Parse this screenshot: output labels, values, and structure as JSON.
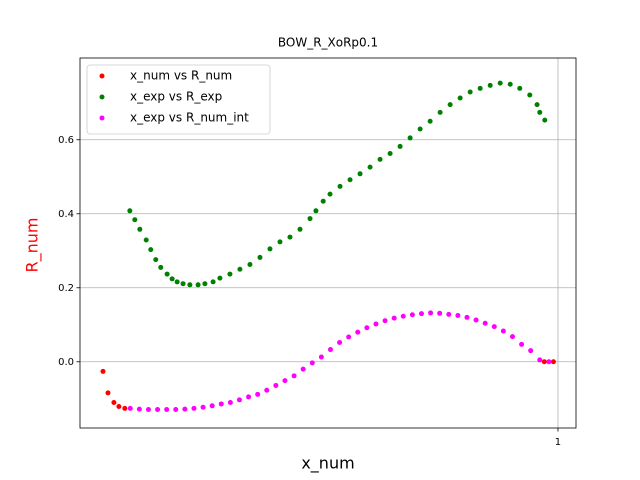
{
  "chart_data": {
    "type": "scatter",
    "title": "BOW_R_XoRp0.1",
    "x_label": "x_num",
    "y_label": "R_num",
    "y_label_color": "#ff0000",
    "xlim": [
      -0.0505,
      1.0396
    ],
    "ylim": [
      -0.179,
      0.821
    ],
    "xticks": [
      1
    ],
    "yticks": [
      {
        "value": 0,
        "label": "0.0"
      },
      0.2,
      0.4,
      0.6
    ],
    "grid": true,
    "legend": "upper left",
    "series": [
      {
        "name": "x_num vs R_num",
        "color": "#ff0000",
        "x": [
          0,
          0.011,
          0.024,
          0.035,
          0.048,
          0.97,
          0.99
        ],
        "values": [
          -0.026,
          -0.084,
          -0.11,
          -0.121,
          -0.126,
          0,
          0
        ]
      },
      {
        "name": "x_exp vs R_exp",
        "color": "#008000",
        "x": [
          0.059,
          0.07,
          0.081,
          0.095,
          0.105,
          0.116,
          0.127,
          0.141,
          0.152,
          0.163,
          0.176,
          0.191,
          0.209,
          0.224,
          0.242,
          0.257,
          0.279,
          0.301,
          0.323,
          0.345,
          0.367,
          0.389,
          0.411,
          0.433,
          0.455,
          0.468,
          0.484,
          0.499,
          0.521,
          0.543,
          0.565,
          0.587,
          0.609,
          0.631,
          0.653,
          0.675,
          0.697,
          0.719,
          0.741,
          0.763,
          0.785,
          0.807,
          0.829,
          0.851,
          0.873,
          0.895,
          0.916,
          0.938,
          0.954,
          0.96,
          0.971
        ],
        "values": [
          0.408,
          0.384,
          0.358,
          0.329,
          0.303,
          0.276,
          0.255,
          0.237,
          0.224,
          0.216,
          0.211,
          0.208,
          0.208,
          0.211,
          0.216,
          0.226,
          0.237,
          0.25,
          0.263,
          0.282,
          0.305,
          0.324,
          0.337,
          0.358,
          0.387,
          0.408,
          0.434,
          0.453,
          0.474,
          0.492,
          0.508,
          0.526,
          0.547,
          0.563,
          0.582,
          0.605,
          0.629,
          0.65,
          0.674,
          0.695,
          0.713,
          0.729,
          0.739,
          0.747,
          0.753,
          0.75,
          0.739,
          0.721,
          0.695,
          0.674,
          0.653
        ]
      },
      {
        "name": "x_exp vs R_num_int",
        "color": "#ff00ff",
        "x": [
          0.06,
          0.08,
          0.1,
          0.12,
          0.14,
          0.16,
          0.18,
          0.2,
          0.22,
          0.24,
          0.26,
          0.28,
          0.3,
          0.32,
          0.34,
          0.36,
          0.38,
          0.4,
          0.42,
          0.44,
          0.46,
          0.48,
          0.5,
          0.52,
          0.54,
          0.56,
          0.58,
          0.6,
          0.62,
          0.64,
          0.66,
          0.68,
          0.7,
          0.72,
          0.74,
          0.76,
          0.78,
          0.8,
          0.82,
          0.84,
          0.86,
          0.88,
          0.9,
          0.92,
          0.94,
          0.96,
          0.98
        ],
        "values": [
          -0.126,
          -0.128,
          -0.129,
          -0.129,
          -0.129,
          -0.129,
          -0.128,
          -0.126,
          -0.123,
          -0.119,
          -0.114,
          -0.11,
          -0.103,
          -0.095,
          -0.088,
          -0.077,
          -0.064,
          -0.051,
          -0.038,
          -0.02,
          -0.003,
          0.013,
          0.033,
          0.052,
          0.067,
          0.08,
          0.092,
          0.102,
          0.111,
          0.118,
          0.123,
          0.127,
          0.13,
          0.132,
          0.131,
          0.128,
          0.125,
          0.12,
          0.113,
          0.104,
          0.095,
          0.083,
          0.068,
          0.047,
          0.03,
          0.005,
          0
        ]
      }
    ]
  }
}
